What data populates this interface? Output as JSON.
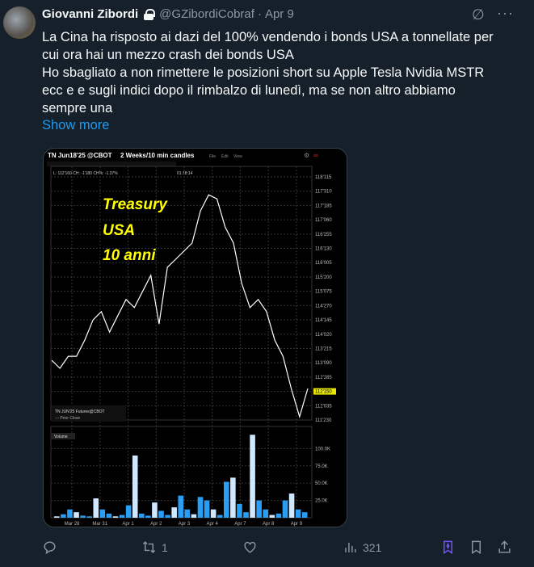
{
  "tweet": {
    "author_name": "Giovanni Zibordi",
    "handle": "@GZibordiCobraf",
    "separator": "·",
    "date": "Apr 9",
    "text_lines": [
      "La Cina ha risposto ai dazi del 100% vendendo i bonds USA a tonnellate per",
      "cui ora hai un mezzo crash dei bonds USA",
      "Ho sbagliato a non rimettere le posizioni short su Apple Tesla Nvidia MSTR",
      "ecc e e sugli indici dopo il rimbalzo di lunedì, ma se non altro abbiamo",
      "sempre una"
    ],
    "show_more": "Show more"
  },
  "chart": {
    "symbol": "TN Jun18'25 @CBOT",
    "timeframe": "2 Weeks/10 min candles",
    "menu": [
      "File",
      "Edit",
      "View"
    ],
    "info": "L: 112'160 CH: -1'180 CH%: -1.37%",
    "time": "01:18:14",
    "annotation": [
      "Treasury",
      "USA",
      "10 anni"
    ],
    "legend_title": "TN JUN'25 Futures@CBOT",
    "legend_prior_close": "--- Prior Close",
    "volume_label": "Volume",
    "price_ticks": [
      "118'115",
      "117'310",
      "117'185",
      "117'060",
      "116'255",
      "116'130",
      "116'005",
      "115'200",
      "115'075",
      "114'270",
      "114'145",
      "114'020",
      "113'215",
      "113'090",
      "112'285",
      "112'150",
      "112'035",
      "111'230"
    ],
    "last_price": "112'150",
    "volume_ticks": [
      "100.0K",
      "75.0K",
      "50.0K",
      "25.0K"
    ],
    "x_ticks": [
      "Mar 28",
      "Mar 31",
      "Apr 1",
      "Apr 2",
      "Apr 3",
      "Apr 4",
      "Apr 7",
      "Apr 8",
      "Apr 9"
    ],
    "colors": {
      "annotation": "#ffff00",
      "price_line": "#ffffff",
      "volume": "#2a9df4",
      "last_price_bg": "#e6e600"
    }
  },
  "chart_data": {
    "type": "line",
    "price_path": [
      113.35,
      113.13,
      113.46,
      113.46,
      113.9,
      114.45,
      114.68,
      114.12,
      114.57,
      115.01,
      114.79,
      115.23,
      115.67,
      114.34,
      115.89,
      116.11,
      116.33,
      116.55,
      117.43,
      117.87,
      117.76,
      116.99,
      116.55,
      115.45,
      114.79,
      115.01,
      114.68,
      113.9,
      113.46,
      112.58,
      111.81,
      112.58
    ],
    "volume_k": [
      2,
      5,
      12,
      8,
      3,
      2,
      28,
      12,
      6,
      2,
      4,
      18,
      90,
      6,
      3,
      22,
      10,
      4,
      15,
      32,
      12,
      5,
      30,
      25,
      12,
      4,
      52,
      58,
      20,
      8,
      120,
      25,
      12,
      4,
      6,
      25,
      35,
      12,
      8
    ]
  },
  "actions": {
    "reply_count": "",
    "retweet_count": "1",
    "like_count": "",
    "views_count": "321"
  }
}
